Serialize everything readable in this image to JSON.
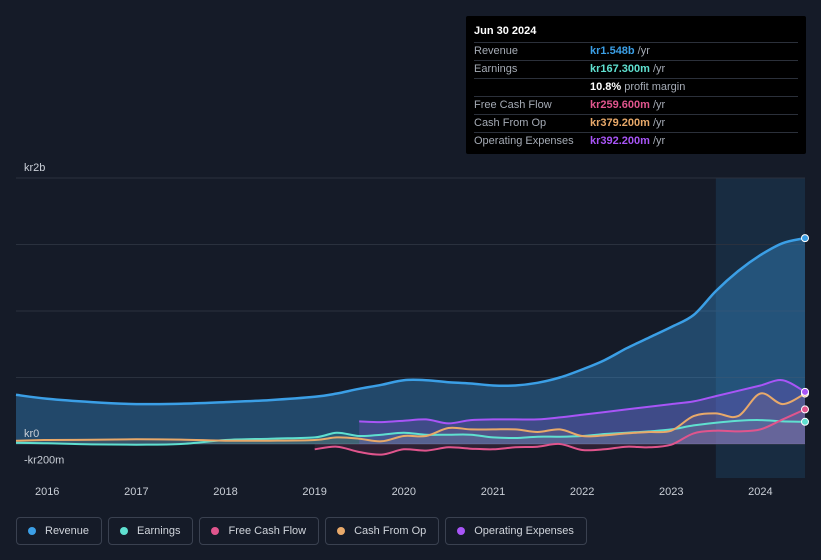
{
  "tooltip": {
    "date": "Jun 30 2024",
    "rows": [
      {
        "label": "Revenue",
        "value": "kr1.548b",
        "unit": "/yr",
        "color": "#3b9fe6"
      },
      {
        "label": "Earnings",
        "value": "kr167.300m",
        "unit": "/yr",
        "color": "#5fe0d0"
      },
      {
        "label": "",
        "value": "10.8%",
        "unit": "profit margin",
        "color": "#ffffff"
      },
      {
        "label": "Free Cash Flow",
        "value": "kr259.600m",
        "unit": "/yr",
        "color": "#e0558d"
      },
      {
        "label": "Cash From Op",
        "value": "kr379.200m",
        "unit": "/yr",
        "color": "#e8a96a"
      },
      {
        "label": "Operating Expenses",
        "value": "kr392.200m",
        "unit": "/yr",
        "color": "#a855f7"
      }
    ]
  },
  "legend": [
    {
      "label": "Revenue",
      "color": "#3b9fe6"
    },
    {
      "label": "Earnings",
      "color": "#5fe0d0"
    },
    {
      "label": "Free Cash Flow",
      "color": "#e0558d"
    },
    {
      "label": "Cash From Op",
      "color": "#e8a96a"
    },
    {
      "label": "Operating Expenses",
      "color": "#a855f7"
    }
  ],
  "chart_data": {
    "type": "area",
    "title": "",
    "units": "kr millions",
    "y_labels": [
      "kr2b",
      "kr0",
      "-kr200m"
    ],
    "ylim": [
      -200,
      2000
    ],
    "x_ticks": [
      "2016",
      "2017",
      "2018",
      "2019",
      "2020",
      "2021",
      "2022",
      "2023",
      "2024"
    ],
    "xlim": [
      2015.65,
      2024.5
    ],
    "highlight_start": 2023.5,
    "series": [
      {
        "name": "Revenue",
        "color": "#3b9fe6",
        "x": [
          2015.65,
          2016.0,
          2016.5,
          2017.0,
          2017.5,
          2018.0,
          2018.5,
          2019.0,
          2019.25,
          2019.5,
          2019.75,
          2020.0,
          2020.25,
          2020.5,
          2020.75,
          2021.0,
          2021.25,
          2021.5,
          2021.75,
          2022.0,
          2022.25,
          2022.5,
          2022.75,
          2023.0,
          2023.25,
          2023.5,
          2023.75,
          2024.0,
          2024.25,
          2024.5
        ],
        "y": [
          370,
          340,
          315,
          300,
          303,
          315,
          330,
          355,
          380,
          415,
          445,
          480,
          480,
          465,
          455,
          440,
          440,
          460,
          500,
          560,
          630,
          720,
          800,
          880,
          970,
          1150,
          1300,
          1420,
          1510,
          1548
        ]
      },
      {
        "name": "Earnings",
        "color": "#5fe0d0",
        "x": [
          2015.65,
          2016.0,
          2016.5,
          2017.0,
          2017.5,
          2018.0,
          2018.5,
          2019.0,
          2019.25,
          2019.5,
          2019.75,
          2020.0,
          2020.25,
          2020.5,
          2020.75,
          2021.0,
          2021.25,
          2021.5,
          2021.75,
          2022.0,
          2022.25,
          2022.5,
          2022.75,
          2023.0,
          2023.25,
          2023.5,
          2023.75,
          2024.0,
          2024.25,
          2024.5
        ],
        "y": [
          10,
          5,
          -3,
          -5,
          0,
          30,
          40,
          50,
          85,
          60,
          70,
          85,
          70,
          70,
          70,
          50,
          45,
          55,
          55,
          60,
          75,
          85,
          95,
          110,
          140,
          160,
          175,
          180,
          170,
          167
        ]
      },
      {
        "name": "Free Cash Flow",
        "color": "#e0558d",
        "x": [
          2019.0,
          2019.25,
          2019.5,
          2019.75,
          2020.0,
          2020.25,
          2020.5,
          2020.75,
          2021.0,
          2021.25,
          2021.5,
          2021.75,
          2022.0,
          2022.25,
          2022.5,
          2022.75,
          2023.0,
          2023.25,
          2023.5,
          2023.75,
          2024.0,
          2024.25,
          2024.5
        ],
        "y": [
          -40,
          -20,
          -60,
          -80,
          -40,
          -50,
          -25,
          -35,
          -40,
          -25,
          -20,
          0,
          -45,
          -40,
          -20,
          -25,
          -5,
          80,
          100,
          95,
          110,
          185,
          260
        ]
      },
      {
        "name": "Cash From Op",
        "color": "#e8a96a",
        "x": [
          2015.65,
          2016.0,
          2016.5,
          2017.0,
          2017.5,
          2018.0,
          2018.5,
          2019.0,
          2019.25,
          2019.5,
          2019.75,
          2020.0,
          2020.25,
          2020.5,
          2020.75,
          2021.0,
          2021.25,
          2021.5,
          2021.75,
          2022.0,
          2022.25,
          2022.5,
          2022.75,
          2023.0,
          2023.25,
          2023.5,
          2023.75,
          2024.0,
          2024.25,
          2024.5
        ],
        "y": [
          25,
          30,
          32,
          35,
          33,
          25,
          25,
          30,
          50,
          40,
          20,
          60,
          60,
          120,
          110,
          110,
          110,
          90,
          110,
          60,
          65,
          80,
          90,
          100,
          210,
          230,
          210,
          380,
          300,
          379
        ]
      },
      {
        "name": "Operating Expenses",
        "color": "#a855f7",
        "x": [
          2019.5,
          2019.75,
          2020.0,
          2020.25,
          2020.5,
          2020.75,
          2021.0,
          2021.25,
          2021.5,
          2021.75,
          2022.0,
          2022.25,
          2022.5,
          2022.75,
          2023.0,
          2023.25,
          2023.5,
          2023.75,
          2024.0,
          2024.25,
          2024.5
        ],
        "y": [
          170,
          165,
          175,
          185,
          155,
          180,
          185,
          185,
          185,
          200,
          220,
          240,
          260,
          280,
          300,
          320,
          360,
          400,
          440,
          480,
          392
        ]
      }
    ]
  }
}
